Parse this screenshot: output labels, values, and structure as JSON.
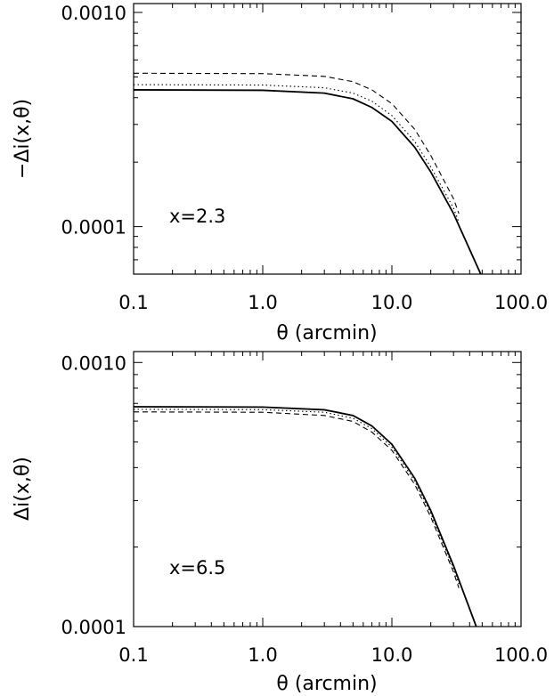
{
  "chart_data": [
    {
      "type": "line",
      "xlabel": "θ (arcmin)",
      "ylabel": "−Δi(x,θ)",
      "x_scale": "log",
      "y_scale": "log",
      "xlim": [
        0.1,
        100.0
      ],
      "ylim": [
        6e-05,
        0.0011
      ],
      "x_tick_labels": [
        "0.1",
        "1.0",
        "10.0",
        "100.0"
      ],
      "y_tick_labels": [
        "0.0001",
        "0.0010"
      ],
      "annotation": "x=2.3",
      "series": [
        {
          "style": "solid",
          "x": [
            0.1,
            1.0,
            3.0,
            5.0,
            7.0,
            10.0,
            15.0,
            20.0,
            30.0,
            50.0
          ],
          "values": [
            0.000435,
            0.000433,
            0.00042,
            0.000395,
            0.00036,
            0.00031,
            0.000235,
            0.00018,
            0.000115,
            5.8e-05
          ]
        },
        {
          "style": "dotted",
          "x": [
            0.1,
            1.0,
            3.0,
            5.0,
            7.0,
            10.0,
            15.0,
            20.0,
            30.0,
            33.0
          ],
          "values": [
            0.00046,
            0.000458,
            0.000445,
            0.00042,
            0.000385,
            0.00033,
            0.00025,
            0.00019,
            0.000122,
            0.000105
          ]
        },
        {
          "style": "dashed",
          "x": [
            0.1,
            1.0,
            3.0,
            5.0,
            7.0,
            10.0,
            15.0,
            20.0,
            30.0,
            33.0
          ],
          "values": [
            0.00052,
            0.000518,
            0.000503,
            0.000475,
            0.000435,
            0.000375,
            0.000285,
            0.000215,
            0.000135,
            0.000115
          ]
        }
      ]
    },
    {
      "type": "line",
      "xlabel": "θ (arcmin)",
      "ylabel": "Δi(x,θ)",
      "x_scale": "log",
      "y_scale": "log",
      "xlim": [
        0.1,
        100.0
      ],
      "ylim": [
        0.0001,
        0.0011
      ],
      "x_tick_labels": [
        "0.1",
        "1.0",
        "10.0",
        "100.0"
      ],
      "y_tick_labels": [
        "0.0001",
        "0.0010"
      ],
      "annotation": "x=6.5",
      "series": [
        {
          "style": "solid",
          "x": [
            0.1,
            1.0,
            3.0,
            5.0,
            7.0,
            10.0,
            15.0,
            20.0,
            30.0,
            45.0
          ],
          "values": [
            0.00068,
            0.000678,
            0.000662,
            0.00063,
            0.000575,
            0.00049,
            0.000365,
            0.000275,
            0.00017,
            0.0001
          ]
        },
        {
          "style": "dotted",
          "x": [
            0.1,
            1.0,
            3.0,
            5.0,
            7.0,
            10.0,
            15.0,
            20.0,
            30.0,
            33.0
          ],
          "values": [
            0.000665,
            0.000663,
            0.000648,
            0.000615,
            0.000562,
            0.000478,
            0.000356,
            0.000268,
            0.000166,
            0.000145
          ]
        },
        {
          "style": "dashed",
          "x": [
            0.1,
            1.0,
            3.0,
            5.0,
            7.0,
            10.0,
            15.0,
            20.0,
            30.0,
            33.0
          ],
          "values": [
            0.00065,
            0.000648,
            0.00063,
            0.000598,
            0.000545,
            0.000465,
            0.000346,
            0.00026,
            0.000161,
            0.00014
          ]
        }
      ]
    }
  ]
}
